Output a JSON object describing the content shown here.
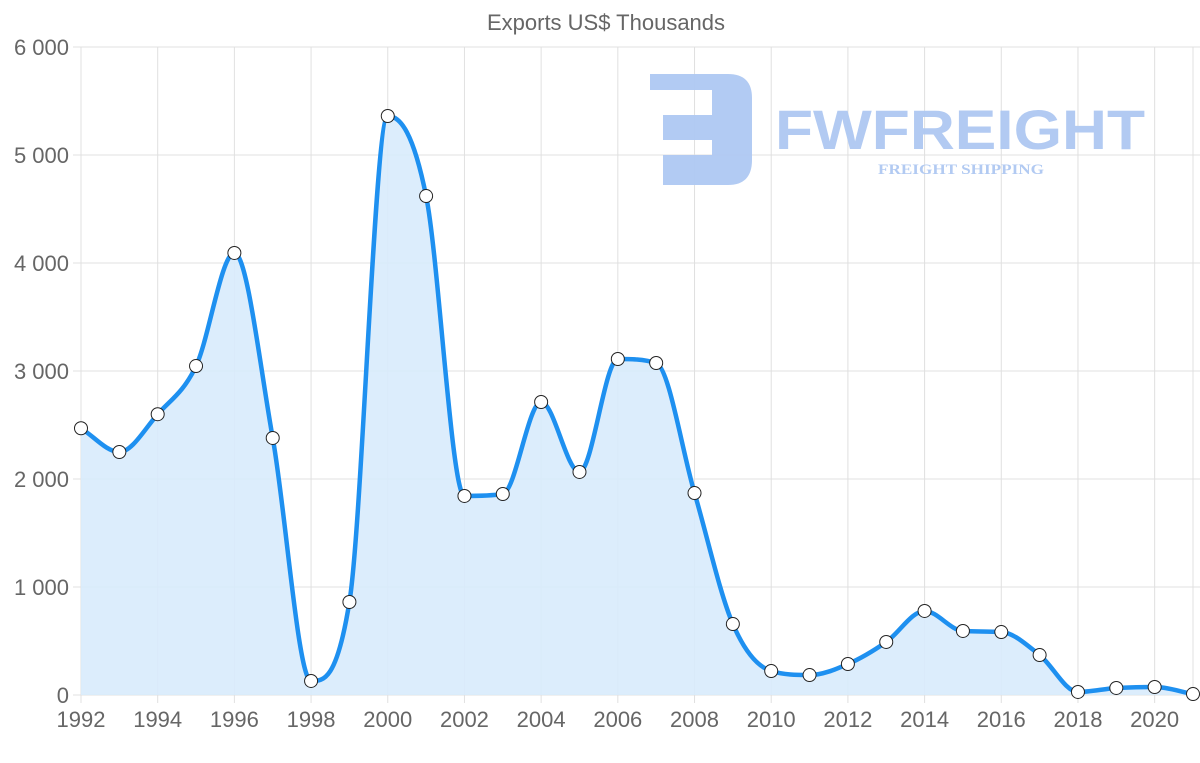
{
  "chart_data": {
    "type": "line",
    "title": "Exports US$ Thousands",
    "xlabel": "",
    "ylabel": "",
    "x": [
      1992,
      1993,
      1994,
      1995,
      1996,
      1997,
      1998,
      1999,
      2000,
      2001,
      2002,
      2003,
      2004,
      2005,
      2006,
      2007,
      2008,
      2009,
      2010,
      2011,
      2012,
      2013,
      2014,
      2015,
      2016,
      2017,
      2018,
      2019,
      2020,
      2021
    ],
    "series": [
      {
        "name": "Exports",
        "values": [
          2470,
          2250,
          2600,
          3046,
          4093,
          2380,
          130,
          861,
          5361,
          4620,
          1843,
          1861,
          2713,
          2065,
          3111,
          3074,
          1870,
          657,
          222,
          185,
          287,
          491,
          778,
          593,
          583,
          370,
          28,
          65,
          74,
          9
        ]
      }
    ],
    "xlim": [
      1992,
      2021
    ],
    "ylim": [
      0,
      6000
    ],
    "xticks": [
      "1992",
      "1994",
      "1996",
      "1998",
      "2000",
      "2002",
      "2004",
      "2006",
      "2008",
      "2010",
      "2012",
      "2014",
      "2016",
      "2018",
      "2020"
    ],
    "yticks": [
      "0",
      "1 000",
      "2 000",
      "3 000",
      "4 000",
      "5 000",
      "6 000"
    ],
    "grid": true,
    "fill": true,
    "colors": {
      "line": "#1e90f0",
      "fill": "#d8ebfc",
      "grid": "#e0e0e0",
      "logo": "#aec8f2"
    }
  },
  "watermark": {
    "brand": "FWFREIGHT",
    "tagline": "FREIGHT SHIPPING"
  }
}
